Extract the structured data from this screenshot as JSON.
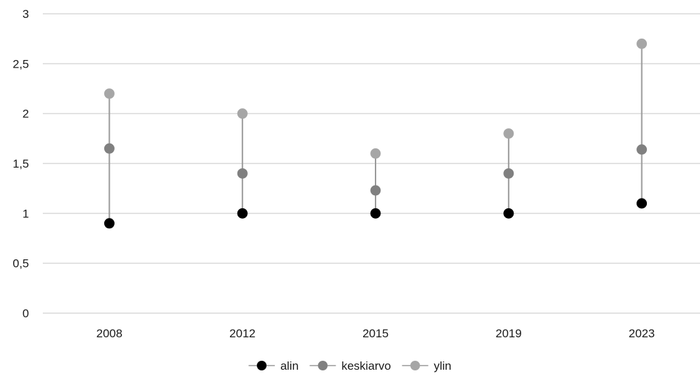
{
  "chart_data": {
    "type": "scatter",
    "categories": [
      "2008",
      "2012",
      "2015",
      "2019",
      "2023"
    ],
    "ylim": [
      0,
      3
    ],
    "yticks": [
      0,
      0.5,
      1,
      1.5,
      2,
      2.5,
      3
    ],
    "ytick_labels": [
      "0",
      "0,5",
      "1",
      "1,5",
      "2",
      "2,5",
      "3"
    ],
    "grid": true,
    "legend_position": "bottom",
    "range_line_color": "#999999",
    "series": [
      {
        "name": "alin",
        "color": "#000000",
        "values": [
          0.9,
          1.0,
          1.0,
          1.0,
          1.1
        ]
      },
      {
        "name": "keskiarvo",
        "color": "#808080",
        "values": [
          1.65,
          1.4,
          1.23,
          1.4,
          1.64
        ]
      },
      {
        "name": "ylin",
        "color": "#a6a6a6",
        "values": [
          2.2,
          2.0,
          1.6,
          1.8,
          2.7
        ]
      }
    ]
  }
}
